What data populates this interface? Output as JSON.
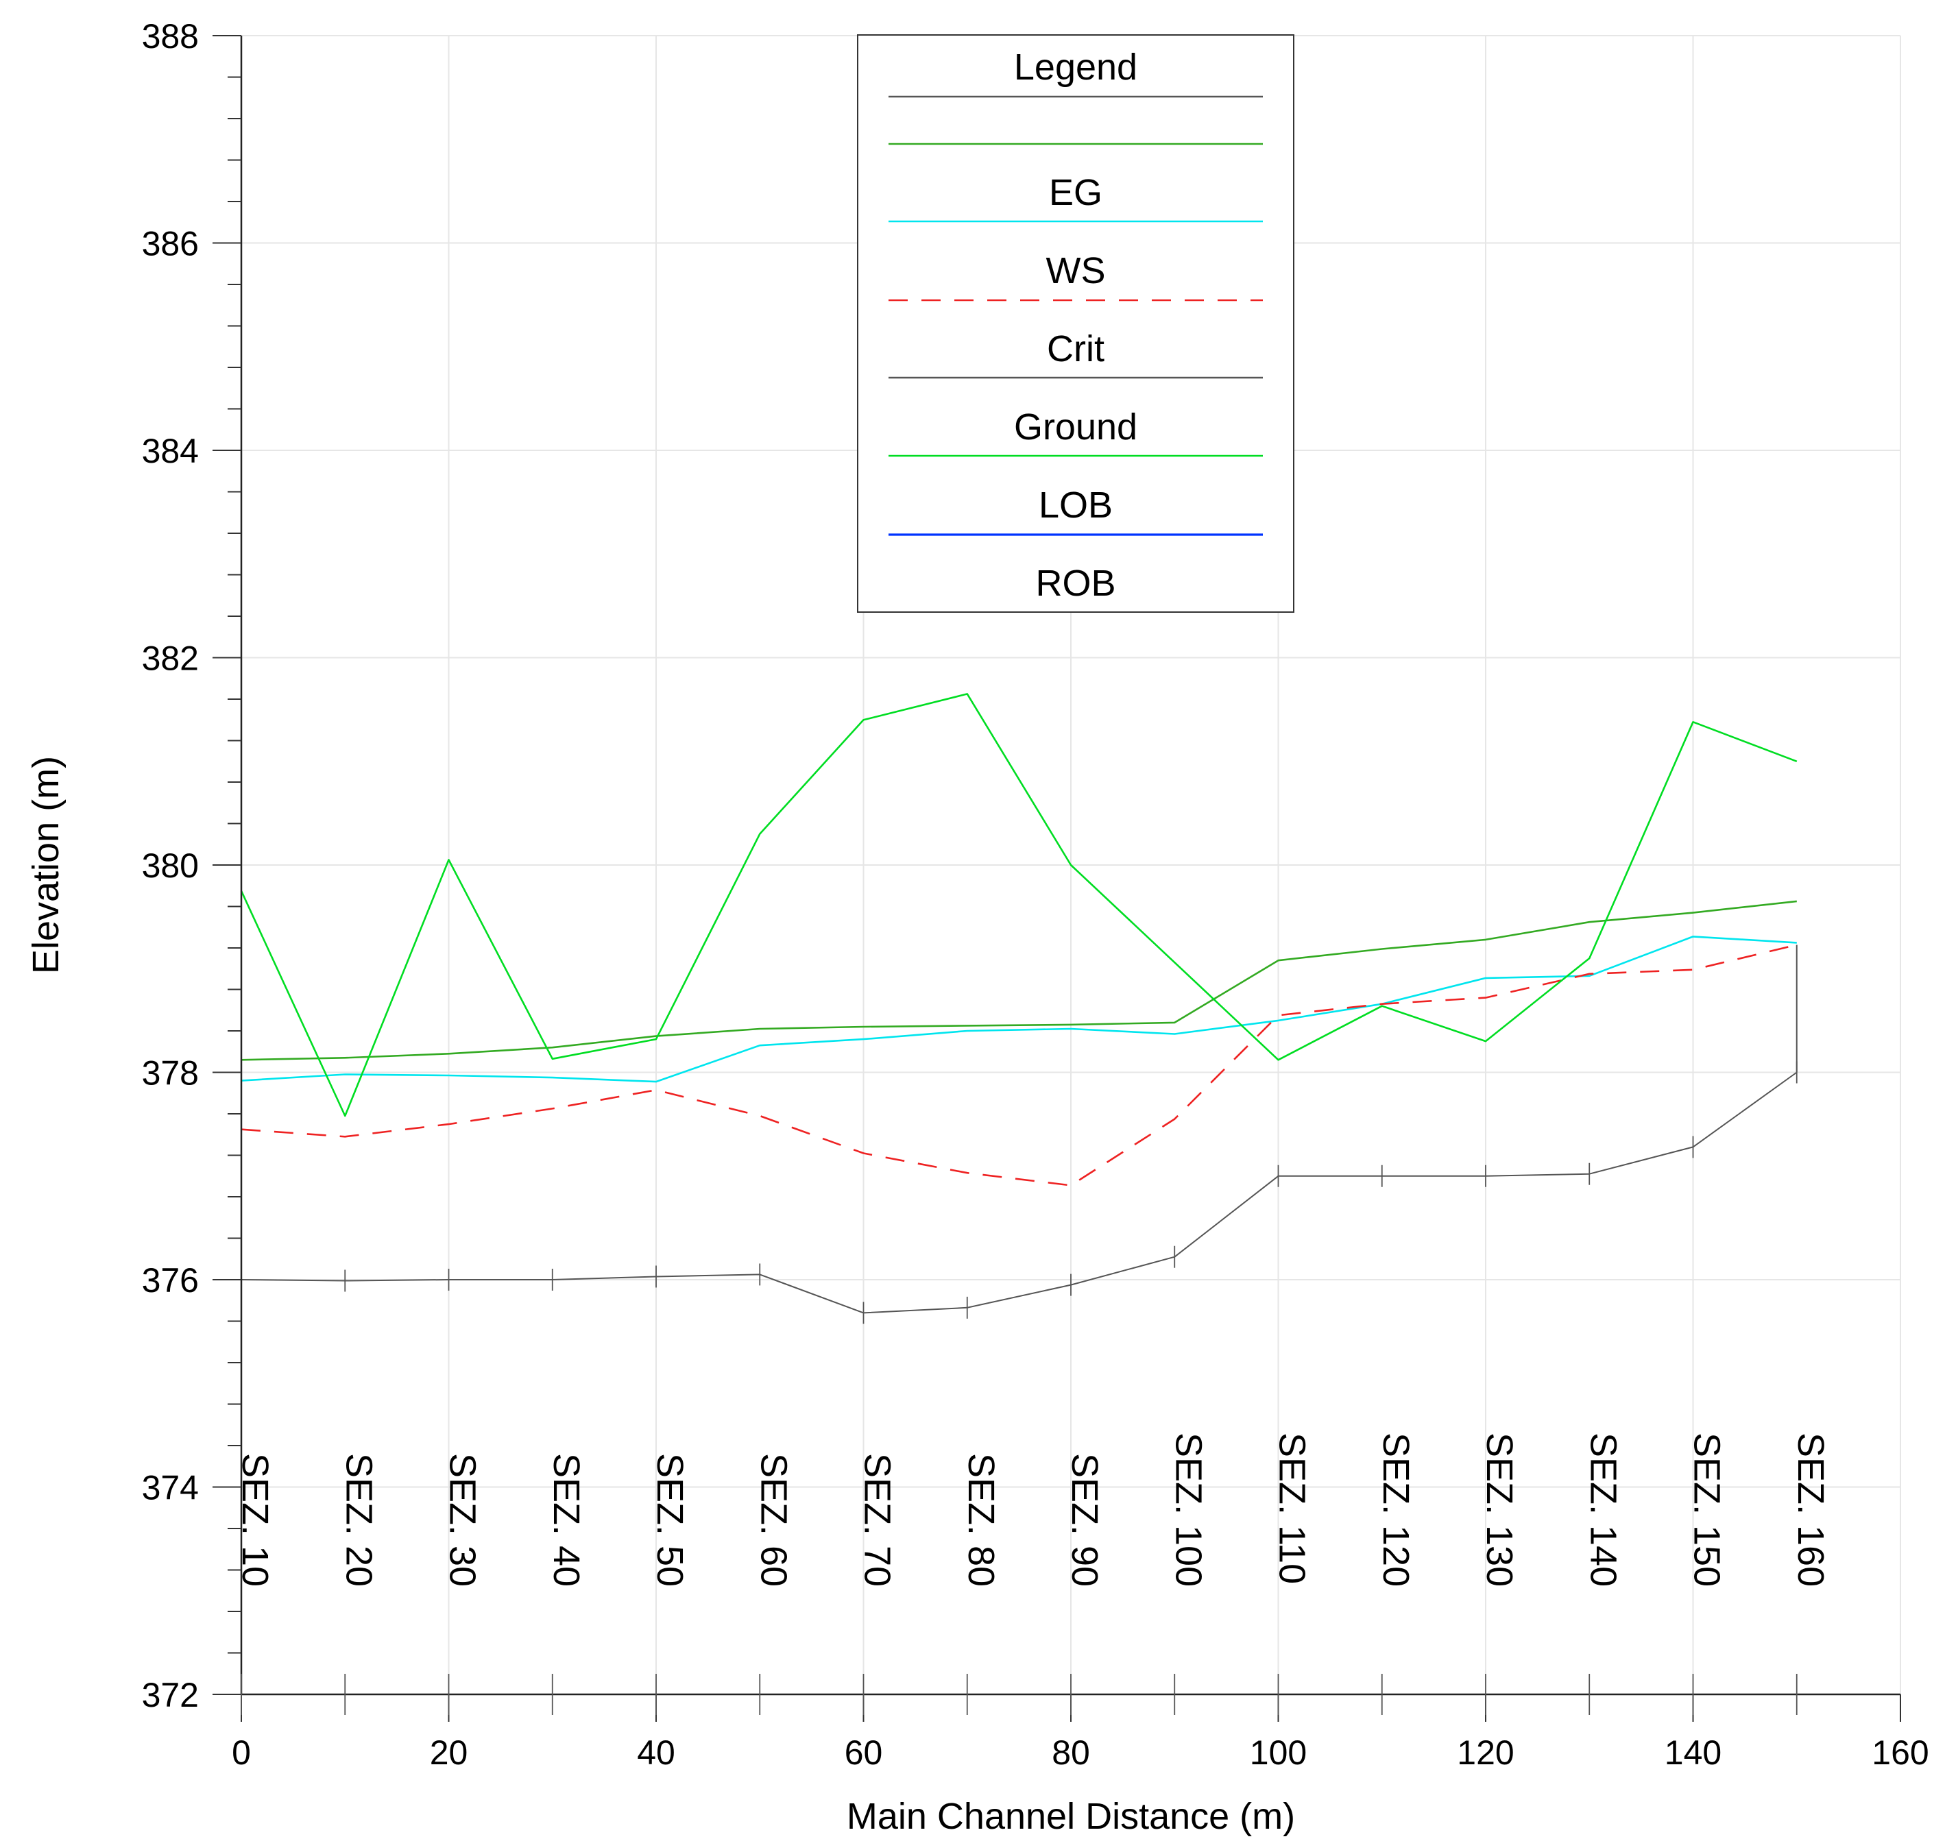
{
  "chart_data": {
    "type": "line",
    "xlabel": "Main Channel Distance (m)",
    "ylabel": "Elevation (m)",
    "xlim": [
      0,
      160
    ],
    "ylim": [
      372,
      388
    ],
    "xticks": [
      0,
      20,
      40,
      60,
      80,
      100,
      120,
      140,
      160
    ],
    "yticks": [
      372,
      374,
      376,
      378,
      380,
      382,
      384,
      386,
      388
    ],
    "grid": true,
    "legend": {
      "title": "Legend",
      "placement": "top-center",
      "entries": [
        {
          "label": "",
          "color": "#555555",
          "dash": ""
        },
        {
          "label": "",
          "color": "#33aa22",
          "dash": ""
        },
        {
          "label": "EG",
          "color": "#00e5ee",
          "dash": ""
        },
        {
          "label": "WS",
          "color": "#ee2222",
          "dash": "28,20"
        },
        {
          "label": "Crit",
          "color": "#555555",
          "dash": ""
        },
        {
          "label": "Ground",
          "color": "#00dd22",
          "dash": ""
        },
        {
          "label": "LOB",
          "color": "#0033ff",
          "dash": ""
        },
        {
          "label": "ROB",
          "color": "",
          "dash": ""
        }
      ]
    },
    "x": [
      0,
      10,
      20,
      30,
      40,
      50,
      60,
      70,
      80,
      90,
      100,
      110,
      120,
      130,
      140,
      150
    ],
    "stations": [
      "SEZ. 10",
      "SEZ. 20",
      "SEZ. 30",
      "SEZ. 40",
      "SEZ. 50",
      "SEZ. 60",
      "SEZ. 70",
      "SEZ. 80",
      "SEZ. 90",
      "SEZ. 100",
      "SEZ. 110",
      "SEZ. 120",
      "SEZ. 130",
      "SEZ. 140",
      "SEZ. 150",
      "SEZ. 160"
    ],
    "series": [
      {
        "key": "dark-green",
        "color": "#33aa22",
        "dash": "",
        "values": [
          378.12,
          378.14,
          378.18,
          378.24,
          378.35,
          378.42,
          378.44,
          378.45,
          378.46,
          378.48,
          379.08,
          379.19,
          379.28,
          379.45,
          379.54,
          379.65
        ]
      },
      {
        "key": "cyan",
        "color": "#00e5ee",
        "dash": "",
        "values": [
          377.92,
          377.98,
          377.97,
          377.95,
          377.91,
          378.26,
          378.32,
          378.4,
          378.42,
          378.37,
          378.5,
          378.66,
          378.91,
          378.93,
          379.31,
          379.25
        ]
      },
      {
        "key": "red-dashed",
        "color": "#ee2222",
        "dash": "28,20",
        "values": [
          377.45,
          377.38,
          377.5,
          377.65,
          377.83,
          377.58,
          377.22,
          377.03,
          376.91,
          377.55,
          378.55,
          378.66,
          378.72,
          378.95,
          378.99,
          379.23
        ]
      },
      {
        "key": "ground",
        "color": "#00dd22",
        "dash": "",
        "values": [
          379.75,
          377.58,
          380.05,
          378.13,
          378.32,
          380.3,
          381.4,
          381.65,
          380.0,
          379.06,
          378.12,
          378.64,
          378.3,
          379.1,
          381.38,
          381.0
        ]
      },
      {
        "key": "thalweg",
        "color": "#555555",
        "dash": "",
        "values": [
          376.0,
          375.99,
          376.0,
          376.0,
          376.03,
          376.05,
          375.68,
          375.73,
          375.95,
          376.22,
          377.0,
          377.0,
          377.0,
          377.02,
          377.28,
          378.0
        ]
      }
    ]
  }
}
